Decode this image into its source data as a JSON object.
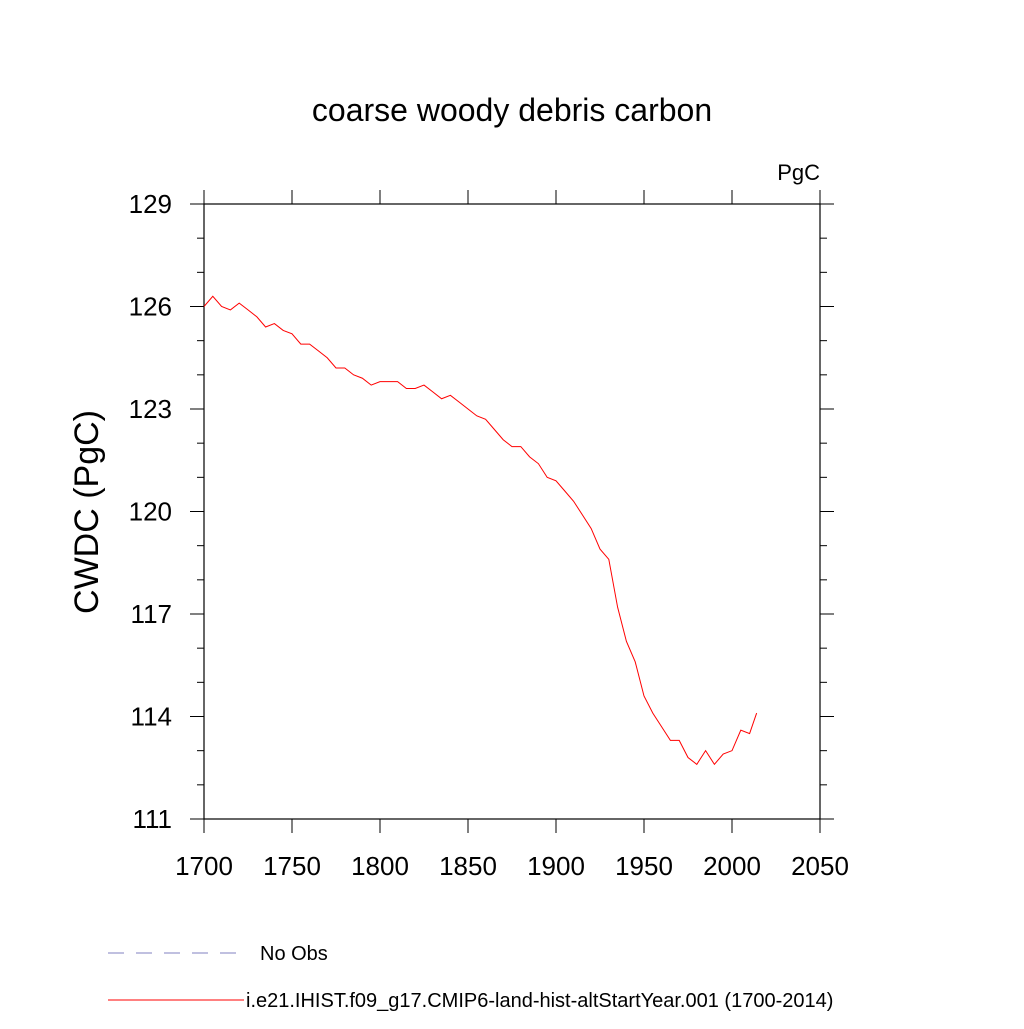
{
  "chart_data": {
    "type": "line",
    "title": "coarse woody debris carbon",
    "units": "PgC",
    "y_label": "CWDC  (PgC)",
    "x": [
      1700,
      1705,
      1710,
      1715,
      1720,
      1725,
      1730,
      1735,
      1740,
      1745,
      1750,
      1755,
      1760,
      1765,
      1770,
      1775,
      1780,
      1785,
      1790,
      1795,
      1800,
      1805,
      1810,
      1815,
      1820,
      1825,
      1830,
      1835,
      1840,
      1845,
      1850,
      1855,
      1860,
      1865,
      1870,
      1875,
      1880,
      1885,
      1890,
      1895,
      1900,
      1905,
      1910,
      1915,
      1920,
      1925,
      1930,
      1935,
      1940,
      1945,
      1950,
      1955,
      1960,
      1965,
      1970,
      1975,
      1980,
      1985,
      1990,
      1995,
      2000,
      2005,
      2010,
      2014
    ],
    "series": [
      {
        "name": "i.e21.IHIST.f09_g17.CMIP6-land-hist-altStartYear.001 (1700-2014)",
        "color": "#ff0000",
        "values": [
          126.0,
          126.3,
          126.0,
          125.9,
          126.1,
          125.9,
          125.7,
          125.4,
          125.5,
          125.3,
          125.2,
          124.9,
          124.9,
          124.7,
          124.5,
          124.2,
          124.2,
          124.0,
          123.9,
          123.7,
          123.8,
          123.8,
          123.8,
          123.6,
          123.6,
          123.7,
          123.5,
          123.3,
          123.4,
          123.2,
          123.0,
          122.8,
          122.7,
          122.4,
          122.1,
          121.9,
          121.9,
          121.6,
          121.4,
          121.0,
          120.9,
          120.6,
          120.3,
          119.9,
          119.5,
          118.9,
          118.6,
          117.2,
          116.2,
          115.6,
          114.6,
          114.1,
          113.7,
          113.3,
          113.3,
          112.8,
          112.6,
          113.0,
          112.6,
          112.9,
          113.0,
          113.6,
          113.5,
          114.1
        ]
      }
    ],
    "reference": {
      "name": "No Obs",
      "color": "#8080c0",
      "dashed": true
    },
    "xlim": [
      1700,
      2050
    ],
    "xticks": [
      1700,
      1750,
      1800,
      1850,
      1900,
      1950,
      2000,
      2050
    ],
    "ylim": [
      111,
      129
    ],
    "yticks": [
      111,
      114,
      117,
      120,
      123,
      126,
      129
    ],
    "yminorticks": [
      112,
      113,
      115,
      116,
      118,
      119,
      121,
      122,
      124,
      125,
      127,
      128
    ]
  }
}
